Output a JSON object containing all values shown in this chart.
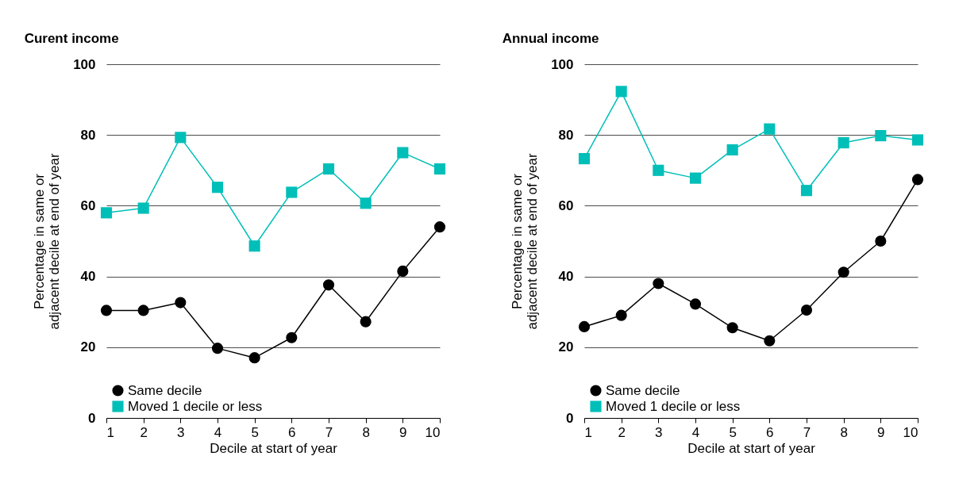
{
  "chart_data": [
    {
      "type": "line",
      "title": "Curent income",
      "xlabel": "Decile at start of year",
      "ylabel": "Percentage in same or adjacent decile at end of year",
      "categories": [
        "1",
        "2",
        "3",
        "4",
        "5",
        "6",
        "7",
        "8",
        "9",
        "10"
      ],
      "series": [
        {
          "name": "Same decile",
          "color": "#000000",
          "marker": "circle",
          "values": [
            30.4,
            30.4,
            32.6,
            19.7,
            17,
            22.7,
            37.6,
            27.2,
            41.5,
            54
          ]
        },
        {
          "name": "Moved 1 decile or less",
          "color": "#00bfb8",
          "marker": "square",
          "values": [
            58,
            59.3,
            79.3,
            65.2,
            48.6,
            63.8,
            70.4,
            60.7,
            75,
            70.4
          ]
        }
      ],
      "ylim": [
        0,
        100
      ],
      "yticks": [
        0,
        20,
        40,
        60,
        80,
        100
      ],
      "grid": "y",
      "legend": "bottom left"
    },
    {
      "type": "line",
      "title": "Annual income",
      "xlabel": "Decile at start of year",
      "ylabel": "Percentage in same or adjacent decile at end of year",
      "categories": [
        "1",
        "2",
        "3",
        "4",
        "5",
        "6",
        "7",
        "8",
        "9",
        "10"
      ],
      "series": [
        {
          "name": "Same decile",
          "color": "#000000",
          "marker": "circle",
          "values": [
            25.8,
            29,
            38,
            32.2,
            25.5,
            21.8,
            30.5,
            41.2,
            50,
            67.4
          ]
        },
        {
          "name": "Moved 1 decile or less",
          "color": "#00bfb8",
          "marker": "square",
          "values": [
            73.3,
            92.3,
            70,
            67.8,
            75.8,
            81.7,
            64.3,
            77.8,
            79.8,
            78.6
          ]
        }
      ],
      "ylim": [
        0,
        100
      ],
      "yticks": [
        0,
        20,
        40,
        60,
        80,
        100
      ],
      "grid": "y",
      "legend": "bottom left"
    }
  ]
}
